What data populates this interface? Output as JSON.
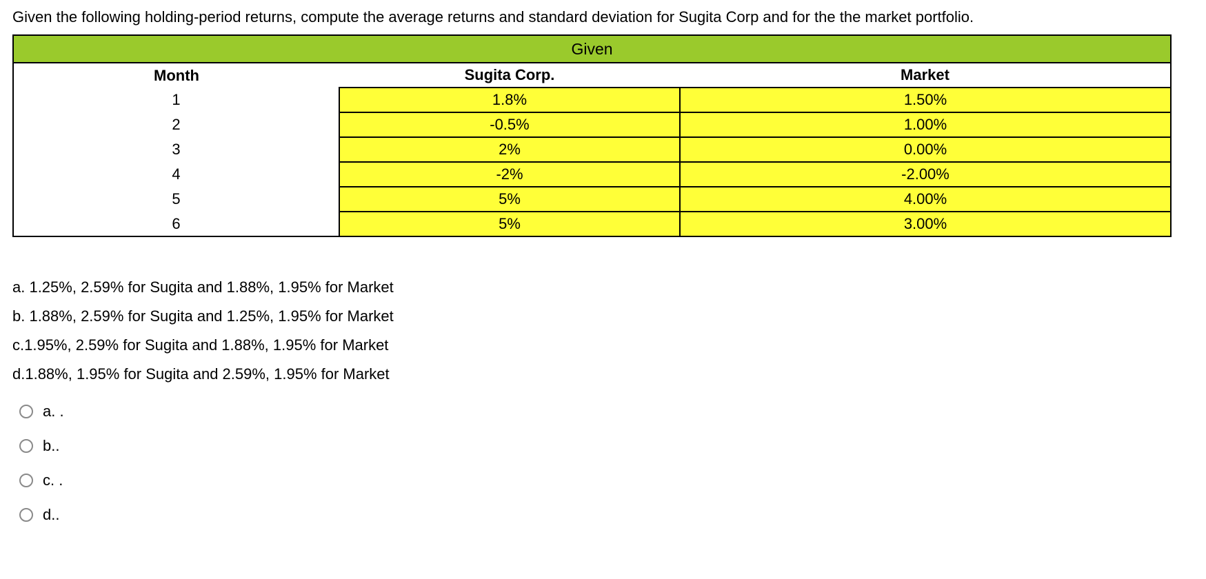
{
  "question": {
    "text": "Given the following holding-period returns, compute the average returns and standard deviation for Sugita Corp and for the the market portfolio."
  },
  "table": {
    "title": "Given",
    "columns": [
      "Month",
      "Sugita Corp.",
      "Market"
    ],
    "rows": [
      {
        "month": "1",
        "sugita": "1.8%",
        "market": "1.50%"
      },
      {
        "month": "2",
        "sugita": "-0.5%",
        "market": "1.00%"
      },
      {
        "month": "3",
        "sugita": "2%",
        "market": "0.00%"
      },
      {
        "month": "4",
        "sugita": "-2%",
        "market": "-2.00%"
      },
      {
        "month": "5",
        "sugita": "5%",
        "market": "4.00%"
      },
      {
        "month": "6",
        "sugita": "5%",
        "market": "3.00%"
      }
    ],
    "colors": {
      "title_bg": "#9ACA2C",
      "cell_bg": "#FFFF38",
      "border": "#000000"
    }
  },
  "answer_text_options": [
    "a. 1.25%, 2.59% for Sugita and 1.88%, 1.95% for Market",
    "b. 1.88%, 2.59% for Sugita and 1.25%, 1.95% for Market",
    "c.1.95%, 2.59% for Sugita and 1.88%, 1.95% for Market",
    "d.1.88%, 1.95% for Sugita and 2.59%, 1.95% for Market"
  ],
  "radio_options": [
    "a. .",
    "b..",
    "c. .",
    "d.."
  ]
}
